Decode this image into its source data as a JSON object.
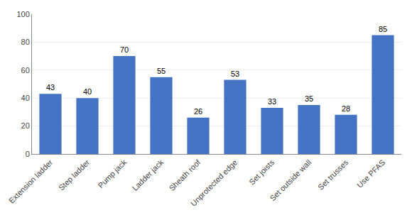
{
  "chart_data": {
    "type": "bar",
    "categories": [
      "Extension ladder",
      "Step ladder",
      "Pump jack",
      "Ladder jack",
      "Sheath roof",
      "Unprotected edge",
      "Set joists",
      "Set outside wall",
      "Set trusses",
      "Use PFAS"
    ],
    "values": [
      43,
      40,
      70,
      55,
      26,
      53,
      33,
      35,
      28,
      85
    ],
    "color": "#4472C4",
    "ylim": [
      0,
      100
    ],
    "yticks": [
      0,
      20,
      40,
      60,
      80,
      100
    ],
    "grid": true,
    "data_labels": true
  }
}
